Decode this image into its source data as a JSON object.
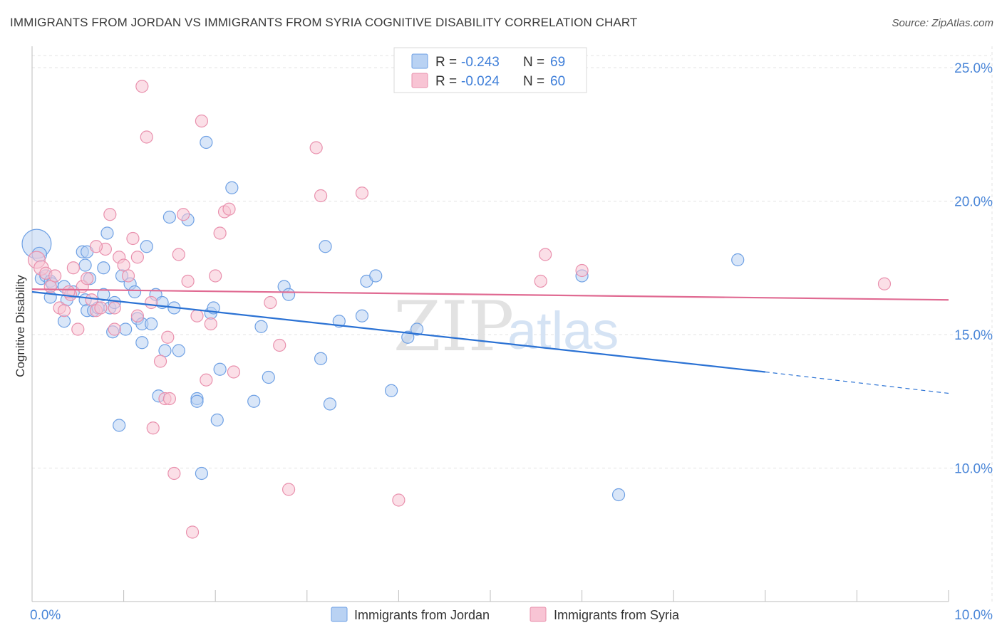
{
  "header": {
    "title": "IMMIGRANTS FROM JORDAN VS IMMIGRANTS FROM SYRIA COGNITIVE DISABILITY CORRELATION CHART",
    "source": "Source: ZipAtlas.com"
  },
  "legend": {
    "r_label": "R =",
    "n_label": "N =",
    "jordan": {
      "r": "-0.243",
      "n": "69"
    },
    "syria": {
      "r": "-0.024",
      "n": "60"
    }
  },
  "watermark": {
    "zip": "ZIP",
    "atlas": "atlas"
  },
  "colors": {
    "jordan_fill": "#b9d2f3",
    "jordan_stroke": "#6ea0e4",
    "jordan_line": "#2b72d4",
    "syria_fill": "#f8c4d4",
    "syria_stroke": "#e990ad",
    "syria_line": "#e06a92",
    "grid": "#e3e3e3",
    "tick_label": "#4a86d8"
  },
  "chart_data": {
    "type": "scatter",
    "title": "IMMIGRANTS FROM JORDAN VS IMMIGRANTS FROM SYRIA COGNITIVE DISABILITY CORRELATION CHART",
    "xlabel": "",
    "ylabel": "Cognitive Disability",
    "xlim": [
      0,
      10
    ],
    "ylim": [
      5,
      25.8
    ],
    "x_tick_labels": [
      "0.0%",
      "10.0%"
    ],
    "y_ticks": [
      10,
      15,
      20,
      25
    ],
    "y_tick_labels": [
      "10.0%",
      "15.0%",
      "20.0%",
      "25.0%"
    ],
    "grid": true,
    "legend_position": "top-center",
    "series": [
      {
        "name": "Immigrants from Jordan",
        "r": -0.243,
        "n": 69,
        "trend": {
          "x0": 0,
          "y0": 16.6,
          "x1": 8,
          "y1": 13.6,
          "dashed_to_x": 10,
          "dashed_to_y": 12.8
        },
        "points": [
          [
            0.05,
            18.4,
            2.4
          ],
          [
            0.08,
            18.0,
            1.2
          ],
          [
            0.1,
            17.1,
            1
          ],
          [
            0.15,
            17.2,
            1
          ],
          [
            0.2,
            17.0,
            1
          ],
          [
            0.22,
            16.9,
            1
          ],
          [
            0.2,
            16.4,
            1
          ],
          [
            0.35,
            16.8,
            1
          ],
          [
            0.38,
            16.3,
            1
          ],
          [
            0.35,
            15.5,
            1
          ],
          [
            0.45,
            16.6,
            1
          ],
          [
            0.55,
            18.1,
            1
          ],
          [
            0.6,
            18.1,
            1
          ],
          [
            0.58,
            16.3,
            1
          ],
          [
            0.6,
            15.9,
            1
          ],
          [
            0.58,
            17.6,
            1
          ],
          [
            0.63,
            17.1,
            1
          ],
          [
            0.67,
            15.9,
            1
          ],
          [
            0.72,
            16.0,
            1
          ],
          [
            0.78,
            17.5,
            1
          ],
          [
            0.82,
            18.8,
            1
          ],
          [
            0.78,
            16.5,
            1
          ],
          [
            0.85,
            16.0,
            1
          ],
          [
            0.9,
            16.2,
            1
          ],
          [
            0.88,
            15.1,
            1
          ],
          [
            0.95,
            11.6,
            1
          ],
          [
            0.98,
            17.2,
            1
          ],
          [
            1.02,
            15.2,
            1
          ],
          [
            1.07,
            16.9,
            1
          ],
          [
            1.12,
            16.6,
            1
          ],
          [
            1.15,
            15.6,
            1
          ],
          [
            1.2,
            15.4,
            1
          ],
          [
            1.2,
            14.7,
            1
          ],
          [
            1.25,
            18.3,
            1
          ],
          [
            1.3,
            15.4,
            1
          ],
          [
            1.35,
            16.5,
            1
          ],
          [
            1.38,
            12.7,
            1
          ],
          [
            1.42,
            16.2,
            1
          ],
          [
            1.45,
            14.4,
            1
          ],
          [
            1.5,
            19.4,
            1
          ],
          [
            1.55,
            16.0,
            1
          ],
          [
            1.6,
            14.4,
            1
          ],
          [
            1.7,
            19.3,
            1
          ],
          [
            1.8,
            12.6,
            1
          ],
          [
            1.8,
            12.5,
            1
          ],
          [
            1.85,
            9.8,
            1
          ],
          [
            1.9,
            22.2,
            1
          ],
          [
            1.95,
            15.8,
            1
          ],
          [
            1.98,
            16.0,
            1
          ],
          [
            2.02,
            11.8,
            1
          ],
          [
            2.05,
            13.7,
            1
          ],
          [
            2.18,
            20.5,
            1
          ],
          [
            2.42,
            12.5,
            1
          ],
          [
            2.5,
            15.3,
            1
          ],
          [
            2.58,
            13.4,
            1
          ],
          [
            2.75,
            16.8,
            1
          ],
          [
            2.8,
            16.5,
            1
          ],
          [
            3.15,
            14.1,
            1
          ],
          [
            3.2,
            18.3,
            1
          ],
          [
            3.25,
            12.4,
            1
          ],
          [
            3.35,
            15.5,
            1
          ],
          [
            3.6,
            15.7,
            1
          ],
          [
            3.65,
            17.0,
            1
          ],
          [
            3.75,
            17.2,
            1
          ],
          [
            3.92,
            12.9,
            1
          ],
          [
            4.1,
            14.9,
            1
          ],
          [
            4.2,
            15.2,
            1
          ],
          [
            6.0,
            17.2,
            1
          ],
          [
            7.7,
            17.8,
            1
          ],
          [
            6.4,
            9.0,
            1
          ]
        ]
      },
      {
        "name": "Immigrants from Syria",
        "r": -0.024,
        "n": 60,
        "trend": {
          "x0": 0,
          "y0": 16.7,
          "x1": 10,
          "y1": 16.3
        },
        "points": [
          [
            0.05,
            17.8,
            1.4
          ],
          [
            0.1,
            17.5,
            1.2
          ],
          [
            0.15,
            17.3,
            1
          ],
          [
            0.2,
            16.8,
            1
          ],
          [
            0.25,
            17.2,
            1
          ],
          [
            0.3,
            16.0,
            1
          ],
          [
            0.35,
            15.9,
            1
          ],
          [
            0.42,
            16.5,
            1
          ],
          [
            0.5,
            15.2,
            1
          ],
          [
            0.45,
            17.5,
            1
          ],
          [
            0.55,
            16.8,
            1
          ],
          [
            0.6,
            17.1,
            1
          ],
          [
            0.65,
            16.3,
            1
          ],
          [
            0.7,
            15.9,
            1
          ],
          [
            0.75,
            16.0,
            1
          ],
          [
            0.8,
            18.2,
            1
          ],
          [
            0.85,
            19.5,
            1
          ],
          [
            0.9,
            15.2,
            1
          ],
          [
            0.95,
            17.9,
            1
          ],
          [
            1.0,
            17.6,
            1
          ],
          [
            1.05,
            17.2,
            1
          ],
          [
            1.1,
            18.6,
            1
          ],
          [
            1.15,
            15.7,
            1
          ],
          [
            1.2,
            24.3,
            1
          ],
          [
            1.25,
            22.4,
            1
          ],
          [
            1.3,
            16.2,
            1
          ],
          [
            1.32,
            11.5,
            1
          ],
          [
            1.4,
            14.0,
            1
          ],
          [
            1.45,
            12.6,
            1
          ],
          [
            1.48,
            14.9,
            1
          ],
          [
            1.5,
            12.6,
            1
          ],
          [
            1.55,
            9.8,
            1
          ],
          [
            1.6,
            18.0,
            1
          ],
          [
            1.65,
            19.5,
            1
          ],
          [
            1.7,
            17.0,
            1
          ],
          [
            1.75,
            7.6,
            1
          ],
          [
            1.8,
            15.7,
            1
          ],
          [
            1.85,
            23.0,
            1
          ],
          [
            1.9,
            13.3,
            1
          ],
          [
            1.95,
            15.4,
            1
          ],
          [
            2.0,
            17.2,
            1
          ],
          [
            2.05,
            18.8,
            1
          ],
          [
            2.1,
            19.6,
            1
          ],
          [
            2.15,
            19.7,
            1
          ],
          [
            2.2,
            13.6,
            1
          ],
          [
            2.6,
            16.2,
            1
          ],
          [
            2.7,
            14.6,
            1
          ],
          [
            2.8,
            9.2,
            1
          ],
          [
            3.1,
            22.0,
            1
          ],
          [
            3.15,
            20.2,
            1
          ],
          [
            3.6,
            20.3,
            1
          ],
          [
            4.0,
            8.8,
            1
          ],
          [
            5.55,
            17.0,
            1
          ],
          [
            5.6,
            18.0,
            1
          ],
          [
            6.0,
            17.4,
            1
          ],
          [
            9.3,
            16.9,
            1
          ],
          [
            0.4,
            16.6,
            1
          ],
          [
            0.7,
            18.3,
            1
          ],
          [
            0.9,
            16.0,
            1
          ],
          [
            1.15,
            17.9,
            1
          ]
        ]
      }
    ]
  },
  "bottom_legend": {
    "jordan_label": "Immigrants from Jordan",
    "syria_label": "Immigrants from Syria"
  }
}
